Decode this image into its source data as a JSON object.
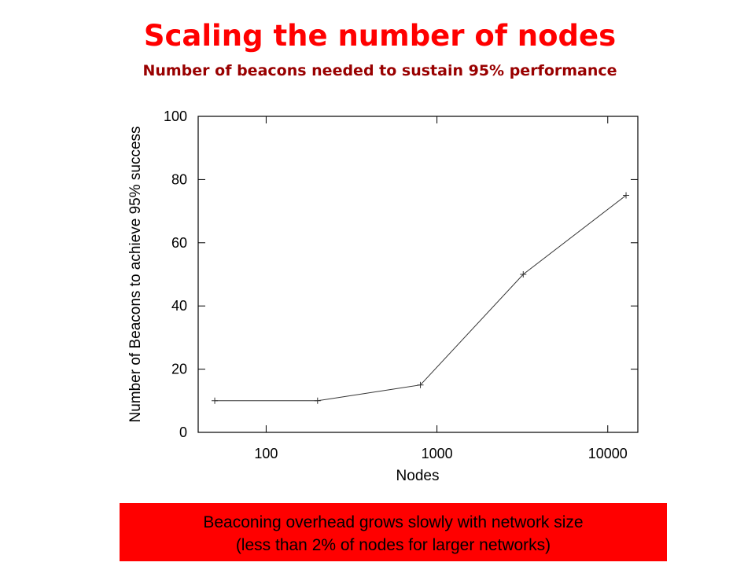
{
  "header": {
    "title": "Scaling the number of nodes",
    "subtitle": "Number of beacons needed to sustain 95% performance"
  },
  "chart_data": {
    "type": "line",
    "xlabel": "Nodes",
    "ylabel": "Number of Beacons to achieve 95% success",
    "x": [
      50,
      200,
      800,
      3200,
      12800
    ],
    "values": [
      10,
      10,
      15,
      50,
      75
    ],
    "color": "#333333",
    "xscale": "log",
    "xlim": [
      40,
      15000
    ],
    "xticks": [
      100,
      1000,
      10000
    ],
    "ylim": [
      0,
      100
    ],
    "yticks": [
      0,
      20,
      40,
      60,
      80,
      100
    ]
  },
  "footer": {
    "lines": [
      "Beaconing overhead grows slowly with network size",
      "(less than 2% of nodes for larger networks)"
    ]
  }
}
